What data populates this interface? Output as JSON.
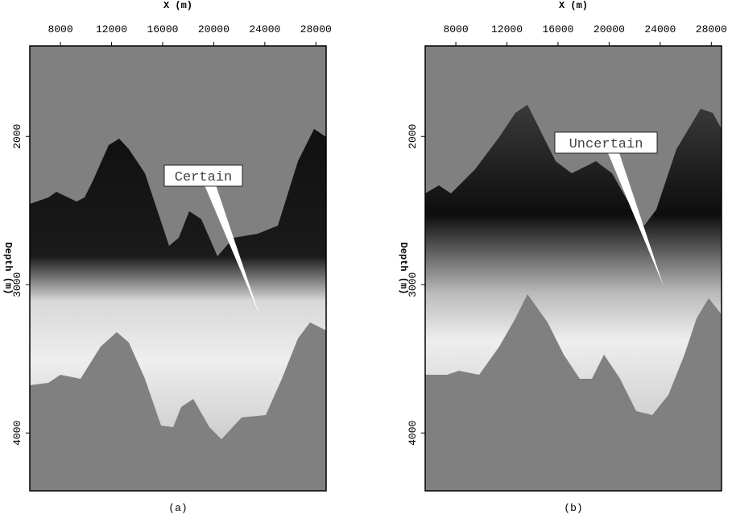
{
  "chart_data": [
    {
      "type": "image",
      "xlabel": "X (m)",
      "ylabel": "Depth (m)",
      "xlim": [
        5600,
        28800
      ],
      "ylim": [
        1390,
        4390
      ],
      "y_inverted": true,
      "xticks": [
        8000,
        12000,
        16000,
        20000,
        24000,
        28000
      ],
      "yticks": [
        2000,
        3000,
        4000
      ],
      "annotation": "Certain",
      "caption": "(a)"
    },
    {
      "type": "image",
      "xlabel": "X (m)",
      "ylabel": "Depth (m)",
      "xlim": [
        5600,
        28800
      ],
      "ylim": [
        1390,
        4390
      ],
      "y_inverted": true,
      "xticks": [
        8000,
        12000,
        16000,
        20000,
        24000,
        28000
      ],
      "yticks": [
        2000,
        3000,
        4000
      ],
      "annotation": "Uncertain",
      "caption": "(b)"
    }
  ]
}
